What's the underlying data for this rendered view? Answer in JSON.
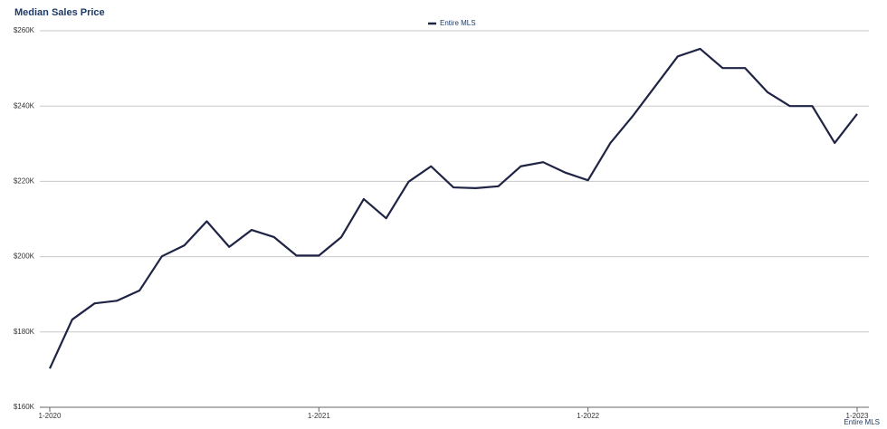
{
  "chart_data": {
    "type": "line",
    "title": "Median Sales Price",
    "categories": [
      "1-2020",
      null,
      null,
      null,
      null,
      null,
      null,
      null,
      null,
      null,
      null,
      null,
      "1-2021",
      null,
      null,
      null,
      null,
      null,
      null,
      null,
      null,
      null,
      null,
      null,
      "1-2022",
      null,
      null,
      null,
      null,
      null,
      null,
      null,
      null,
      null,
      null,
      null,
      "1-2023"
    ],
    "series": [
      {
        "name": "Entire MLS",
        "color": "#1f2344",
        "values": [
          170300,
          183300,
          187600,
          188300,
          191000,
          200100,
          203000,
          209400,
          202600,
          207100,
          205200,
          200300,
          200300,
          205200,
          215300,
          210200,
          219900,
          224000,
          218400,
          218200,
          218700,
          224000,
          225100,
          222300,
          220300,
          230200,
          237400,
          245300,
          253200,
          255200,
          250100,
          250100,
          243700,
          240000,
          240000,
          230200,
          237900
        ]
      }
    ],
    "ylim": [
      160000,
      260000
    ],
    "yticks": [
      {
        "value": 160000,
        "label": "$160K"
      },
      {
        "value": 180000,
        "label": "$180K"
      },
      {
        "value": 200000,
        "label": "$200K"
      },
      {
        "value": 220000,
        "label": "$220K"
      },
      {
        "value": 240000,
        "label": "$240K"
      },
      {
        "value": 260000,
        "label": "$260K"
      }
    ],
    "grid": true,
    "legend": "top"
  }
}
